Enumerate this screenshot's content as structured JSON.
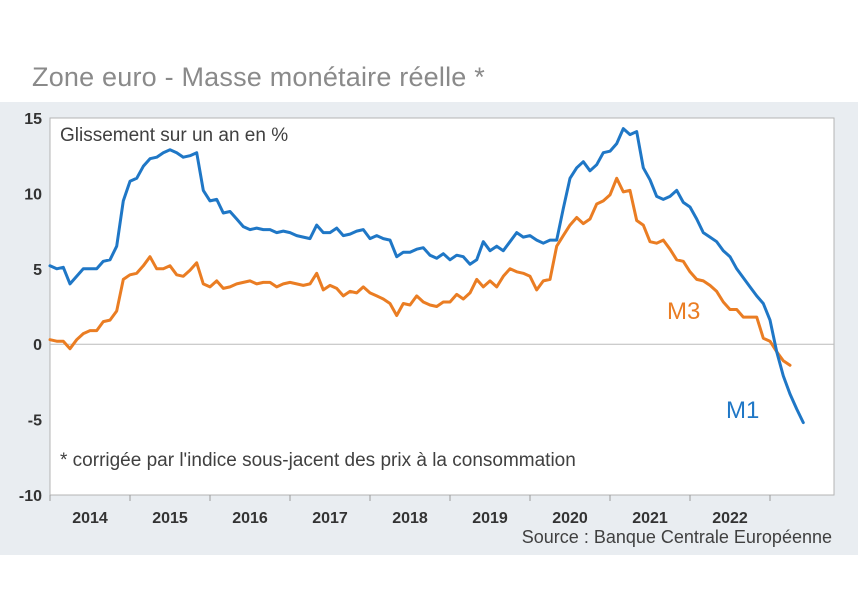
{
  "chart_data": {
    "type": "line",
    "title": "Zone euro - Masse monétaire réelle *",
    "subtitle": "Glissement sur un an en %",
    "note": "* corrigée par l'indice sous-jacent des prix à la consommation",
    "source": "Source :  Banque Centrale Européenne",
    "ylim": [
      -10,
      15
    ],
    "yticks": [
      -10,
      -5,
      0,
      5,
      10,
      15
    ],
    "xlim": [
      2013.5,
      2023.3
    ],
    "xticks": [
      {
        "label": "2014",
        "x": 2014
      },
      {
        "label": "2015",
        "x": 2015
      },
      {
        "label": "2016",
        "x": 2016
      },
      {
        "label": "2017",
        "x": 2017
      },
      {
        "label": "2018",
        "x": 2018
      },
      {
        "label": "2019",
        "x": 2019
      },
      {
        "label": "2020",
        "x": 2020
      },
      {
        "label": "2021",
        "x": 2021
      },
      {
        "label": "2022",
        "x": 2022
      }
    ],
    "xboundaries": [
      2013.5,
      2014.5,
      2015.5,
      2016.5,
      2017.5,
      2018.5,
      2019.5,
      2020.5,
      2021.5,
      2022.5
    ],
    "start": 2013.5,
    "step": 0.0833333,
    "series": [
      {
        "name": "M1",
        "label": "M1",
        "color": "#1f77c6",
        "values": [
          5.2,
          5.0,
          5.1,
          4.0,
          4.5,
          5.0,
          5.0,
          5.0,
          5.5,
          5.6,
          6.5,
          9.5,
          10.8,
          11.0,
          11.8,
          12.3,
          12.4,
          12.7,
          12.9,
          12.7,
          12.4,
          12.5,
          12.7,
          10.2,
          9.5,
          9.6,
          8.7,
          8.8,
          8.3,
          7.8,
          7.6,
          7.7,
          7.6,
          7.6,
          7.4,
          7.5,
          7.4,
          7.2,
          7.1,
          7.0,
          7.9,
          7.4,
          7.4,
          7.7,
          7.2,
          7.3,
          7.5,
          7.6,
          7.0,
          7.2,
          7.0,
          6.9,
          5.8,
          6.1,
          6.1,
          6.3,
          6.4,
          5.9,
          5.7,
          6.0,
          5.6,
          5.9,
          5.8,
          5.3,
          5.6,
          6.8,
          6.2,
          6.5,
          6.2,
          6.8,
          7.4,
          7.1,
          7.2,
          6.9,
          6.7,
          6.9,
          6.9,
          9.0,
          11.0,
          11.7,
          12.1,
          11.5,
          11.9,
          12.7,
          12.8,
          13.3,
          14.3,
          13.9,
          14.1,
          11.7,
          10.9,
          9.8,
          9.6,
          9.8,
          10.2,
          9.4,
          9.1,
          8.3,
          7.4,
          7.1,
          6.8,
          6.2,
          5.8,
          5.0,
          4.4,
          3.8,
          3.2,
          2.7,
          1.6,
          -0.5,
          -2.1,
          -3.3,
          -4.3,
          -5.2
        ]
      },
      {
        "name": "M3",
        "label": "M3",
        "color": "#ea7d23",
        "values": [
          0.3,
          0.2,
          0.2,
          -0.3,
          0.3,
          0.7,
          0.9,
          0.9,
          1.5,
          1.6,
          2.2,
          4.3,
          4.6,
          4.7,
          5.2,
          5.8,
          5.0,
          5.0,
          5.2,
          4.6,
          4.5,
          4.9,
          5.4,
          4.0,
          3.8,
          4.2,
          3.7,
          3.8,
          4.0,
          4.1,
          4.2,
          4.0,
          4.1,
          4.1,
          3.8,
          4.0,
          4.1,
          4.0,
          3.9,
          4.0,
          4.7,
          3.6,
          3.9,
          3.7,
          3.2,
          3.5,
          3.4,
          3.8,
          3.4,
          3.2,
          3.0,
          2.7,
          1.9,
          2.7,
          2.6,
          3.2,
          2.8,
          2.6,
          2.5,
          2.8,
          2.8,
          3.3,
          3.0,
          3.4,
          4.3,
          3.8,
          4.2,
          3.8,
          4.5,
          5.0,
          4.8,
          4.7,
          4.5,
          3.6,
          4.2,
          4.3,
          6.5,
          7.2,
          7.9,
          8.4,
          8.0,
          8.3,
          9.3,
          9.5,
          9.9,
          11.0,
          10.1,
          10.2,
          8.2,
          7.9,
          6.8,
          6.7,
          6.9,
          6.3,
          5.6,
          5.5,
          4.8,
          4.3,
          4.2,
          3.9,
          3.5,
          2.8,
          2.3,
          2.3,
          1.8,
          1.8,
          1.8,
          0.4,
          0.2,
          -0.5,
          -1.1,
          -1.4
        ]
      }
    ]
  }
}
